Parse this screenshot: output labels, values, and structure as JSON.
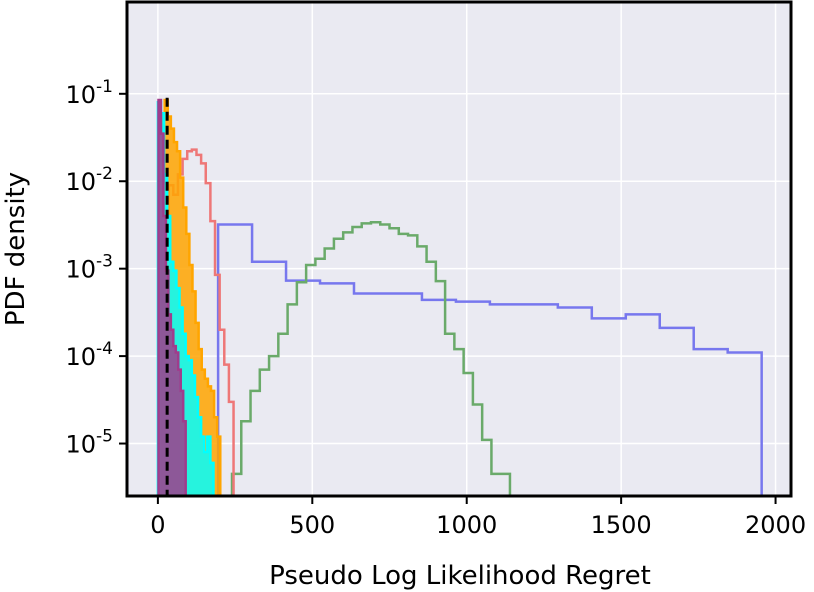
{
  "chart_data": {
    "type": "histogram",
    "title": "",
    "xlabel": "Pseudo Log Likelihood Regret",
    "ylabel": "PDF density",
    "xlim": [
      -100,
      2050
    ],
    "ylim_log10": [
      -5.6,
      0.05
    ],
    "y_scale": "log",
    "grid": true,
    "background": "#eaeaf2",
    "x_ticks": [
      {
        "value": 0,
        "label": "0"
      },
      {
        "value": 500,
        "label": "500"
      },
      {
        "value": 1000,
        "label": "1000"
      },
      {
        "value": 1500,
        "label": "1500"
      },
      {
        "value": 2000,
        "label": "2000"
      }
    ],
    "y_ticks": [
      {
        "exp": -1,
        "base": "10",
        "sup": "-1"
      },
      {
        "exp": -2,
        "base": "10",
        "sup": "-2"
      },
      {
        "exp": -3,
        "base": "10",
        "sup": "-3"
      },
      {
        "exp": -4,
        "base": "10",
        "sup": "-4"
      },
      {
        "exp": -5,
        "base": "10",
        "sup": "-5"
      }
    ],
    "reference_line": {
      "x": 30,
      "color": "#000000",
      "style": "dashed"
    },
    "series": [
      {
        "color": "#7777ee",
        "fill": false,
        "edges": [
          195,
          250,
          305,
          360,
          415,
          470,
          525,
          580,
          635,
          690,
          745,
          800,
          855,
          910,
          965,
          1020,
          1075,
          1130,
          1185,
          1240,
          1295,
          1350,
          1405,
          1460,
          1515,
          1570,
          1625,
          1680,
          1735,
          1790,
          1845,
          1900,
          1955
        ],
        "values": [
          0.0032,
          0.0032,
          0.0012,
          0.0012,
          0.00073,
          0.00073,
          0.00068,
          0.00068,
          0.00052,
          0.00052,
          0.00052,
          0.00052,
          0.00044,
          0.00044,
          0.00042,
          0.00042,
          0.00039,
          0.00039,
          0.00039,
          0.00039,
          0.00036,
          0.00036,
          0.00027,
          0.00027,
          0.0003,
          0.0003,
          0.00021,
          0.00021,
          0.00012,
          0.00012,
          0.00011,
          0.00011
        ]
      },
      {
        "color": "#6aaa6a",
        "fill": false,
        "edges": [
          240,
          270,
          300,
          330,
          360,
          390,
          420,
          450,
          480,
          510,
          540,
          570,
          600,
          630,
          660,
          690,
          720,
          750,
          780,
          810,
          840,
          870,
          900,
          930,
          960,
          990,
          1020,
          1050,
          1080,
          1110,
          1140,
          1175
        ],
        "values": [
          4.5e-06,
          1.8e-05,
          4e-05,
          7e-05,
          0.0001,
          0.00018,
          0.00039,
          0.0007,
          0.0011,
          0.0013,
          0.0017,
          0.0022,
          0.0026,
          0.003,
          0.0033,
          0.0034,
          0.0032,
          0.0029,
          0.0025,
          0.0024,
          0.0018,
          0.0012,
          0.00072,
          0.00018,
          0.00012,
          6.4e-05,
          2.8e-05,
          1.1e-05,
          4.5e-06,
          4.5e-06,
          2.5e-06
        ]
      },
      {
        "color": "#ee7777",
        "fill": false,
        "edges": [
          20,
          35,
          50,
          65,
          80,
          95,
          110,
          125,
          140,
          155,
          170,
          185,
          200,
          215,
          230,
          245
        ],
        "values": [
          0.0038,
          0.009,
          0.007,
          0.012,
          0.018,
          0.022,
          0.023,
          0.02,
          0.016,
          0.0095,
          0.0035,
          0.00085,
          0.0002,
          8e-05,
          3e-05
        ]
      },
      {
        "color": "#ffa500",
        "fill": true,
        "edges": [
          12,
          22,
          32,
          42,
          52,
          62,
          72,
          82,
          92,
          102,
          112,
          122,
          132,
          142,
          152,
          162,
          172,
          182,
          192,
          202
        ],
        "values": [
          0.06,
          0.085,
          0.055,
          0.04,
          0.028,
          0.022,
          0.011,
          0.005,
          0.0025,
          0.0011,
          0.00055,
          0.00024,
          0.00012,
          7e-05,
          5.5e-05,
          4.5e-05,
          4e-05,
          2e-05,
          1.2e-05
        ]
      },
      {
        "color": "#00ffff",
        "fill": true,
        "edges": [
          0,
          10,
          20,
          30,
          40,
          50,
          60,
          70,
          80,
          90,
          100,
          110,
          120,
          130,
          140,
          150,
          160,
          170,
          180
        ],
        "values": [
          0.08,
          0.06,
          0.012,
          0.004,
          0.0012,
          0.00095,
          0.0006,
          0.00036,
          0.00018,
          0.0001,
          9e-05,
          6e-05,
          3.4e-05,
          2e-05,
          1.2e-05,
          8e-06,
          1.2e-05,
          6e-06
        ]
      },
      {
        "color": "#a03c8c",
        "fill": true,
        "edges": [
          2,
          10,
          18,
          26,
          34,
          42,
          50,
          58,
          66,
          74,
          82,
          90
        ],
        "values": [
          0.085,
          0.035,
          0.004,
          0.00095,
          0.0003,
          0.0002,
          0.00013,
          0.00011,
          7e-05,
          4e-05,
          1.8e-05
        ]
      }
    ]
  }
}
